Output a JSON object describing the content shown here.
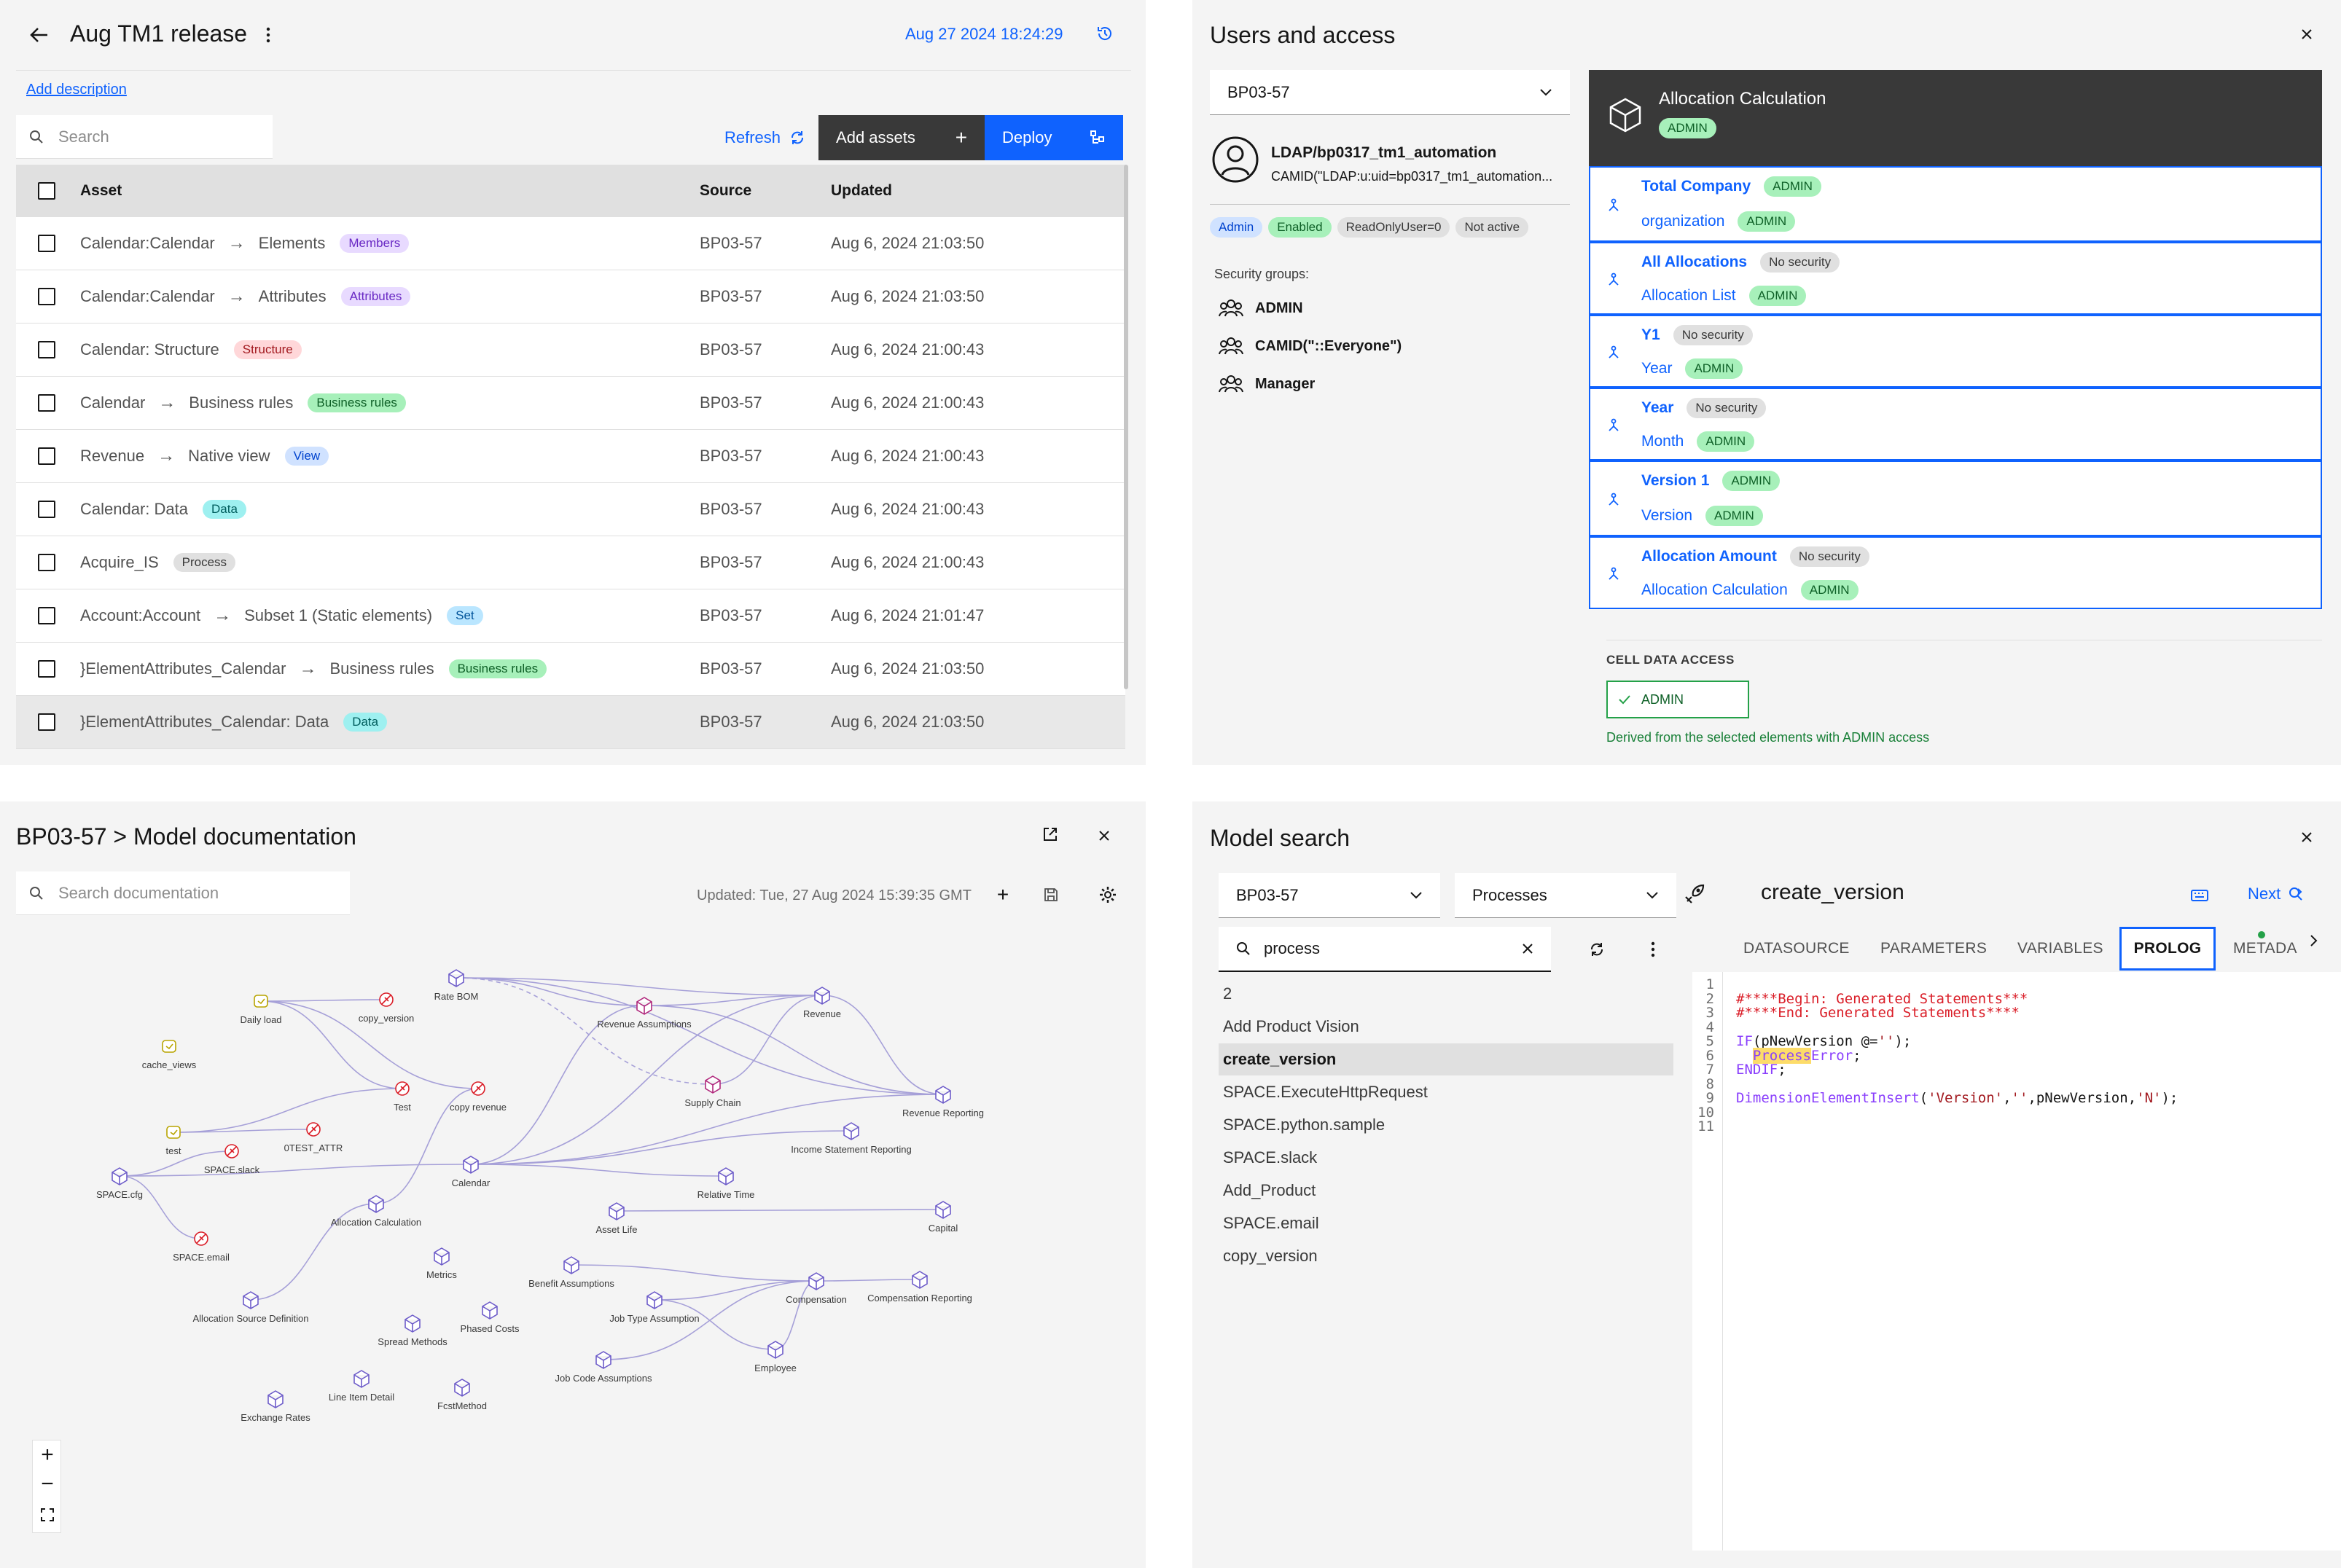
{
  "p1": {
    "title": "Aug TM1 release",
    "timestamp": "Aug 27 2024 18:24:29",
    "add_description": "Add description",
    "search_placeholder": "Search",
    "refresh_label": "Refresh",
    "add_assets_label": "Add assets",
    "deploy_label": "Deploy",
    "columns": {
      "asset": "Asset",
      "source": "Source",
      "updated": "Updated"
    },
    "rows": [
      {
        "name": "Calendar:Calendar",
        "target": "Elements",
        "tag": "Members",
        "tag_color": "#e8daff",
        "tag_text": "#6929c4",
        "source": "BP03-57",
        "updated": "Aug 6, 2024 21:03:50"
      },
      {
        "name": "Calendar:Calendar",
        "target": "Attributes",
        "tag": "Attributes",
        "tag_color": "#e8daff",
        "tag_text": "#6929c4",
        "source": "BP03-57",
        "updated": "Aug 6, 2024 21:03:50"
      },
      {
        "name": "Calendar: Structure",
        "target": "",
        "tag": "Structure",
        "tag_color": "#ffd7d9",
        "tag_text": "#a2191f",
        "source": "BP03-57",
        "updated": "Aug 6, 2024 21:00:43"
      },
      {
        "name": "Calendar",
        "target": "Business rules",
        "tag": "Business rules",
        "tag_color": "#a7f0ba",
        "tag_text": "#0e6027",
        "source": "BP03-57",
        "updated": "Aug 6, 2024 21:00:43"
      },
      {
        "name": "Revenue",
        "target": "Native view",
        "tag": "View",
        "tag_color": "#d0e2ff",
        "tag_text": "#0043ce",
        "source": "BP03-57",
        "updated": "Aug 6, 2024 21:00:43"
      },
      {
        "name": "Calendar: Data",
        "target": "",
        "tag": "Data",
        "tag_color": "#9ef0f0",
        "tag_text": "#005d5d",
        "source": "BP03-57",
        "updated": "Aug 6, 2024 21:00:43"
      },
      {
        "name": "Acquire_IS",
        "target": "",
        "tag": "Process",
        "tag_color": "#e0e0e0",
        "tag_text": "#393939",
        "source": "BP03-57",
        "updated": "Aug 6, 2024 21:00:43"
      },
      {
        "name": "Account:Account",
        "target": "Subset 1 (Static elements)",
        "tag": "Set",
        "tag_color": "#bae6ff",
        "tag_text": "#00539a",
        "source": "BP03-57",
        "updated": "Aug 6, 2024 21:01:47"
      },
      {
        "name": "}ElementAttributes_Calendar",
        "target": "Business rules",
        "tag": "Business rules",
        "tag_color": "#a7f0ba",
        "tag_text": "#0e6027",
        "source": "BP03-57",
        "updated": "Aug 6, 2024 21:03:50"
      },
      {
        "name": "}ElementAttributes_Calendar: Data",
        "target": "",
        "tag": "Data",
        "tag_color": "#9ef0f0",
        "tag_text": "#005d5d",
        "source": "BP03-57",
        "updated": "Aug 6, 2024 21:03:50"
      }
    ]
  },
  "p2": {
    "title": "Users and access",
    "server": "BP03-57",
    "user_name": "LDAP/bp0317_tm1_automation",
    "user_camid": "CAMID(\"LDAP:u:uid=bp0317_tm1_automation...",
    "user_badges": [
      "Admin",
      "Enabled",
      "ReadOnlyUser=0",
      "Not active"
    ],
    "security_groups_label": "Security groups:",
    "groups": [
      "ADMIN",
      "CAMID(\"::Everyone\")",
      "Manager"
    ],
    "element_header": {
      "title": "Allocation Calculation",
      "badge": "ADMIN"
    },
    "elements": [
      {
        "name": "Total Company",
        "name_badge": "ADMIN",
        "dim": "organization",
        "dim_badge": "ADMIN"
      },
      {
        "name": "All Allocations",
        "name_badge": "No security",
        "dim": "Allocation List",
        "dim_badge": "ADMIN"
      },
      {
        "name": "Y1",
        "name_badge": "No security",
        "dim": "Year",
        "dim_badge": "ADMIN"
      },
      {
        "name": "Year",
        "name_badge": "No security",
        "dim": "Month",
        "dim_badge": "ADMIN"
      },
      {
        "name": "Version 1",
        "name_badge": "ADMIN",
        "dim": "Version",
        "dim_badge": "ADMIN"
      },
      {
        "name": "Allocation Amount",
        "name_badge": "No security",
        "dim": "Allocation Calculation",
        "dim_badge": "ADMIN"
      }
    ],
    "cell_access_label": "CELL DATA ACCESS",
    "cell_access_value": "ADMIN",
    "cell_access_note": "Derived from the selected elements with ADMIN access"
  },
  "p3": {
    "title": "BP03-57 > Model documentation",
    "search_placeholder": "Search documentation",
    "updated": "Updated: Tue, 27 Aug 2024 15:39:35 GMT",
    "nodes": [
      {
        "id": "rate_bom",
        "label": "Rate BOM",
        "kind": "cube"
      },
      {
        "id": "daily_load",
        "label": "Daily load",
        "kind": "chore"
      },
      {
        "id": "copy_version",
        "label": "copy_version",
        "kind": "process"
      },
      {
        "id": "cache_views",
        "label": "cache_views",
        "kind": "chore"
      },
      {
        "id": "revenue_assumptions",
        "label": "Revenue Assumptions",
        "kind": "cube"
      },
      {
        "id": "revenue",
        "label": "Revenue",
        "kind": "cube"
      },
      {
        "id": "supply_chain",
        "label": "Supply Chain",
        "kind": "cube"
      },
      {
        "id": "test_proc",
        "label": "Test",
        "kind": "process"
      },
      {
        "id": "copy_revenue",
        "label": "copy revenue",
        "kind": "process"
      },
      {
        "id": "revenue_reporting",
        "label": "Revenue Reporting",
        "kind": "cube"
      },
      {
        "id": "test_chore",
        "label": "test",
        "kind": "chore"
      },
      {
        "id": "test_attr",
        "label": "0TEST_ATTR",
        "kind": "process"
      },
      {
        "id": "space_slack",
        "label": "SPACE.slack",
        "kind": "process"
      },
      {
        "id": "income_statement",
        "label": "Income Statement Reporting",
        "kind": "cube"
      },
      {
        "id": "space_cfg",
        "label": "SPACE.cfg",
        "kind": "cube"
      },
      {
        "id": "calendar",
        "label": "Calendar",
        "kind": "cube"
      },
      {
        "id": "relative_time",
        "label": "Relative Time",
        "kind": "cube"
      },
      {
        "id": "allocation_calc",
        "label": "Allocation Calculation",
        "kind": "cube"
      },
      {
        "id": "asset_life",
        "label": "Asset Life",
        "kind": "cube"
      },
      {
        "id": "capital",
        "label": "Capital",
        "kind": "cube"
      },
      {
        "id": "space_email",
        "label": "SPACE.email",
        "kind": "process"
      },
      {
        "id": "metrics",
        "label": "Metrics",
        "kind": "cube"
      },
      {
        "id": "benefit_assumptions",
        "label": "Benefit Assumptions",
        "kind": "cube"
      },
      {
        "id": "compensation",
        "label": "Compensation",
        "kind": "cube"
      },
      {
        "id": "compensation_reporting",
        "label": "Compensation Reporting",
        "kind": "cube"
      },
      {
        "id": "allocation_source",
        "label": "Allocation Source Definition",
        "kind": "cube"
      },
      {
        "id": "phased_costs",
        "label": "Phased Costs",
        "kind": "cube"
      },
      {
        "id": "job_type",
        "label": "Job Type Assumption",
        "kind": "cube"
      },
      {
        "id": "spread_methods",
        "label": "Spread Methods",
        "kind": "cube"
      },
      {
        "id": "employee",
        "label": "Employee",
        "kind": "cube"
      },
      {
        "id": "job_code",
        "label": "Job Code Assumptions",
        "kind": "cube"
      },
      {
        "id": "line_item",
        "label": "Line Item Detail",
        "kind": "cube"
      },
      {
        "id": "fcst_method",
        "label": "FcstMethod",
        "kind": "cube"
      },
      {
        "id": "exchange_rates",
        "label": "Exchange Rates",
        "kind": "cube"
      }
    ],
    "edges": [
      [
        "daily_load",
        "copy_version"
      ],
      [
        "daily_load",
        "test_proc"
      ],
      [
        "daily_load",
        "copy_revenue"
      ],
      [
        "rate_bom",
        "revenue_assumptions"
      ],
      [
        "rate_bom",
        "revenue"
      ],
      [
        "rate_bom",
        "supply_chain"
      ],
      [
        "rate_bom",
        "revenue_reporting"
      ],
      [
        "revenue_assumptions",
        "revenue"
      ],
      [
        "revenue_assumptions",
        "revenue_reporting"
      ],
      [
        "supply_chain",
        "revenue"
      ],
      [
        "revenue",
        "revenue_reporting"
      ],
      [
        "test_chore",
        "test_proc"
      ],
      [
        "test_chore",
        "test_attr"
      ],
      [
        "space_cfg",
        "space_slack"
      ],
      [
        "space_cfg",
        "space_email"
      ],
      [
        "space_cfg",
        "calendar"
      ],
      [
        "calendar",
        "revenue_assumptions"
      ],
      [
        "calendar",
        "revenue"
      ],
      [
        "calendar",
        "revenue_reporting"
      ],
      [
        "calendar",
        "income_statement"
      ],
      [
        "calendar",
        "relative_time"
      ],
      [
        "allocation_calc",
        "copy_revenue"
      ],
      [
        "allocation_source",
        "allocation_calc"
      ],
      [
        "asset_life",
        "capital"
      ],
      [
        "benefit_assumptions",
        "compensation"
      ],
      [
        "job_type",
        "compensation"
      ],
      [
        "job_type",
        "employee"
      ],
      [
        "compensation",
        "compensation_reporting"
      ],
      [
        "job_code",
        "compensation"
      ],
      [
        "employee",
        "compensation"
      ]
    ]
  },
  "p4": {
    "title": "Model search",
    "server": "BP03-57",
    "type": "Processes",
    "query": "process",
    "results": [
      "2",
      "Add Product Vision",
      "create_version",
      "SPACE.ExecuteHttpRequest",
      "SPACE.python.sample",
      "SPACE.slack",
      "Add_Product",
      "SPACE.email",
      "copy_version"
    ],
    "selected_index": 2,
    "detail_title": "create_version",
    "next_label": "Next",
    "tabs": [
      "DATASOURCE",
      "PARAMETERS",
      "VARIABLES",
      "PROLOG",
      "METADA"
    ],
    "active_tab": 3,
    "code_lines": [
      "",
      "#****Begin: Generated Statements***",
      "#****End: Generated Statements****",
      "",
      "IF(pNewVersion @='');",
      "  ProcessError;",
      "ENDIF;",
      "",
      "DimensionElementInsert('Version','',pNewVersion,'N');",
      "",
      ""
    ]
  }
}
